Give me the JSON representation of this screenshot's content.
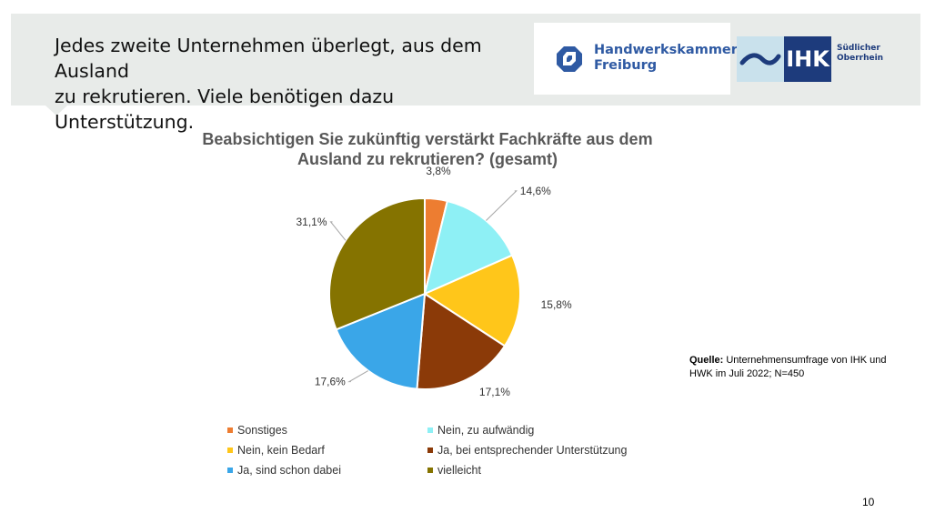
{
  "headline": {
    "line1": "Jedes zweite Unternehmen überlegt, aus dem Ausland",
    "line2": "zu rekrutieren. Viele benötigen dazu Unterstützung."
  },
  "logos": {
    "hwk_line1": "Handwerkskammer",
    "hwk_line2": "Freiburg",
    "ihk_text": "IHK",
    "ihk_region_line1": "Südlicher",
    "ihk_region_line2": "Oberrhein"
  },
  "chart_data": {
    "type": "pie",
    "title_line1": "Beabsichtigen Sie zukünftig verstärkt Fachkräfte aus dem",
    "title_line2": "Ausland zu rekrutieren? (gesamt)",
    "slices": [
      {
        "label": "Sonstiges",
        "value": 3.8,
        "display": "3,8%",
        "color": "#ed7d31"
      },
      {
        "label": "Nein, zu aufwändig",
        "value": 14.6,
        "display": "14,6%",
        "color": "#8ef0f5"
      },
      {
        "label": "Nein, kein Bedarf",
        "value": 15.8,
        "display": "15,8%",
        "color": "#ffc61a"
      },
      {
        "label": "Ja, bei entsprechender Unterstützung",
        "value": 17.1,
        "display": "17,1%",
        "color": "#8b3a08"
      },
      {
        "label": "Ja, sind schon dabei",
        "value": 17.6,
        "display": "17,6%",
        "color": "#3aa6e8"
      },
      {
        "label": "vielleicht",
        "value": 31.1,
        "display": "31,1%",
        "color": "#857300"
      }
    ],
    "legend_position": "bottom"
  },
  "source": {
    "label": "Quelle:",
    "text": "Unternehmensumfrage von IHK und HWK im Juli 2022; N=450"
  },
  "page_number": "10"
}
